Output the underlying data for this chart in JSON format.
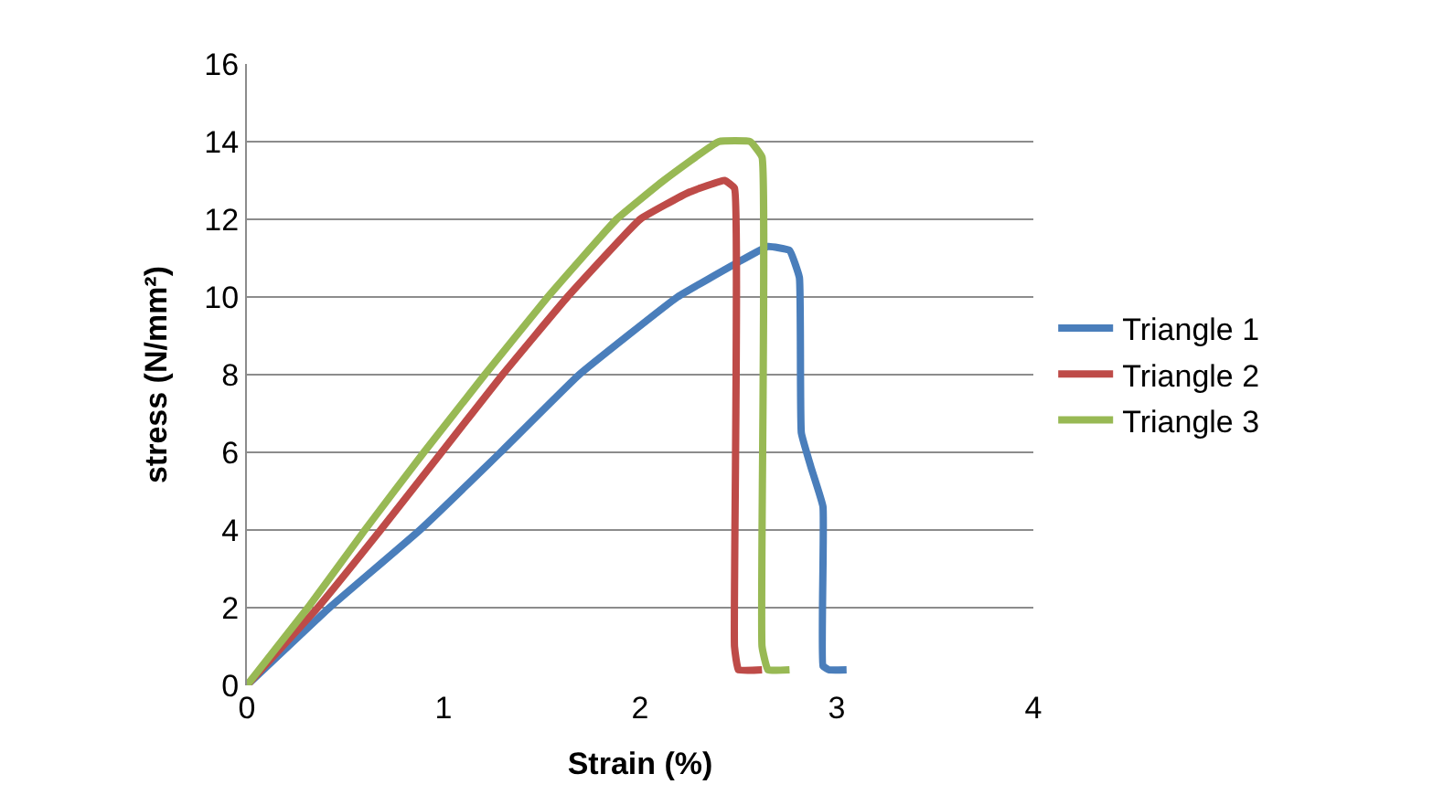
{
  "chart_data": {
    "type": "line",
    "xlabel": "Strain (%)",
    "ylabel": "stress (N/mm²)",
    "xlim": [
      0,
      4
    ],
    "xticks": [
      0,
      1,
      2,
      3,
      4
    ],
    "ylim": [
      0,
      16
    ],
    "yticks": [
      0,
      2,
      4,
      6,
      8,
      10,
      12,
      14,
      16
    ],
    "grid": "y",
    "legend": "right",
    "marker": "none",
    "line_style": "solid",
    "series": [
      {
        "name": "Triangle 1",
        "color": "#4a7ebb",
        "x": [
          0,
          0.42,
          0.88,
          1.29,
          1.69,
          2.19,
          2.5,
          2.65,
          2.76,
          2.81,
          2.82,
          2.87,
          2.93,
          2.93,
          2.96,
          3.05
        ],
        "values": [
          0,
          2,
          4,
          6,
          8,
          10,
          10.9,
          11.3,
          11.2,
          10.5,
          6.5,
          5.6,
          4.6,
          0.5,
          0.4,
          0.4
        ]
      },
      {
        "name": "Triangle 2",
        "color": "#be4b48",
        "x": [
          0,
          0.36,
          0.68,
          0.99,
          1.3,
          1.63,
          2.0,
          2.25,
          2.43,
          2.48,
          2.48,
          2.5,
          2.62
        ],
        "values": [
          0,
          2,
          4,
          6,
          8,
          10,
          12,
          12.7,
          13,
          12.8,
          1,
          0.4,
          0.4
        ]
      },
      {
        "name": "Triangle 3",
        "color": "#98b954",
        "x": [
          0,
          0.31,
          0.6,
          0.9,
          1.21,
          1.53,
          1.88,
          2.12,
          2.4,
          2.56,
          2.62,
          2.62,
          2.65,
          2.76
        ],
        "values": [
          0,
          2,
          4,
          6,
          8,
          10,
          12,
          13,
          14,
          14,
          13.6,
          1,
          0.4,
          0.4
        ]
      }
    ]
  }
}
